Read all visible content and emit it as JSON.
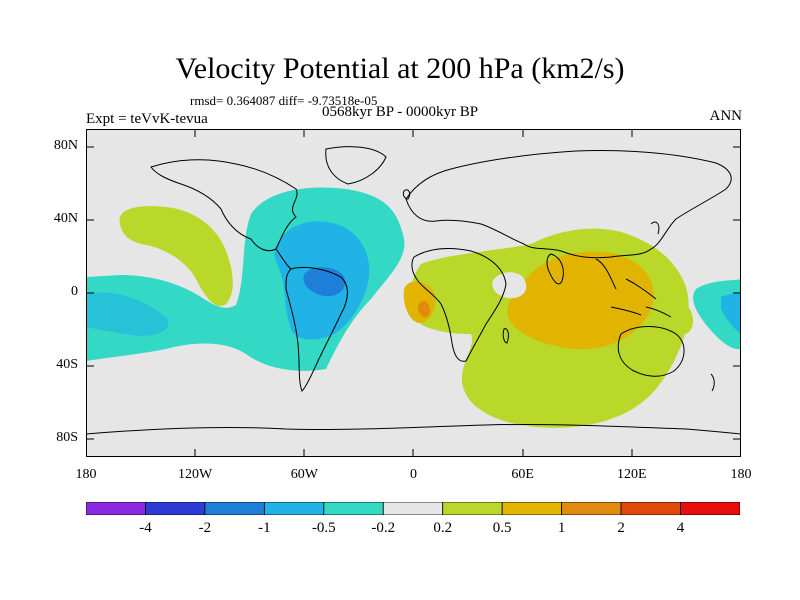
{
  "title": "Velocity Potential at 200 hPa (km2/s)",
  "stats": "rmsd= 0.364087 diff= -9.73518e-05",
  "left_label": "Expt = teVvK-tevua",
  "center_label": "0568kyr BP - 0000kyr BP",
  "right_label": "ANN",
  "map": {
    "projection": "cylindrical-equidistant",
    "lon_range": [
      -180,
      180
    ],
    "lat_range": [
      -90,
      90
    ],
    "y_ticks": [
      {
        "label": "80N",
        "lat": 80
      },
      {
        "label": "40N",
        "lat": 40
      },
      {
        "label": "0",
        "lat": 0
      },
      {
        "label": "40S",
        "lat": -40
      },
      {
        "label": "80S",
        "lat": -80
      }
    ],
    "x_ticks": [
      {
        "label": "180",
        "lon": -180
      },
      {
        "label": "120W",
        "lon": -120
      },
      {
        "label": "60W",
        "lon": -60
      },
      {
        "label": "0",
        "lon": 0
      },
      {
        "label": "60E",
        "lon": 60
      },
      {
        "label": "120E",
        "lon": 120
      },
      {
        "label": "180",
        "lon": 180
      }
    ],
    "background_color": "#e6e6e6",
    "coastline_color": "#000000"
  },
  "colorbar": {
    "colors": [
      "#8a2be2",
      "#2e3ad4",
      "#1e7fd8",
      "#21b2e6",
      "#33d9c4",
      "#e6e6e6",
      "#b9d82a",
      "#e0b400",
      "#e08a10",
      "#e04a0a",
      "#e80e0e"
    ],
    "tick_labels": [
      "-4",
      "-2",
      "-1",
      "-0.5",
      "-0.2",
      "0.2",
      "0.5",
      "1",
      "2",
      "4"
    ]
  }
}
